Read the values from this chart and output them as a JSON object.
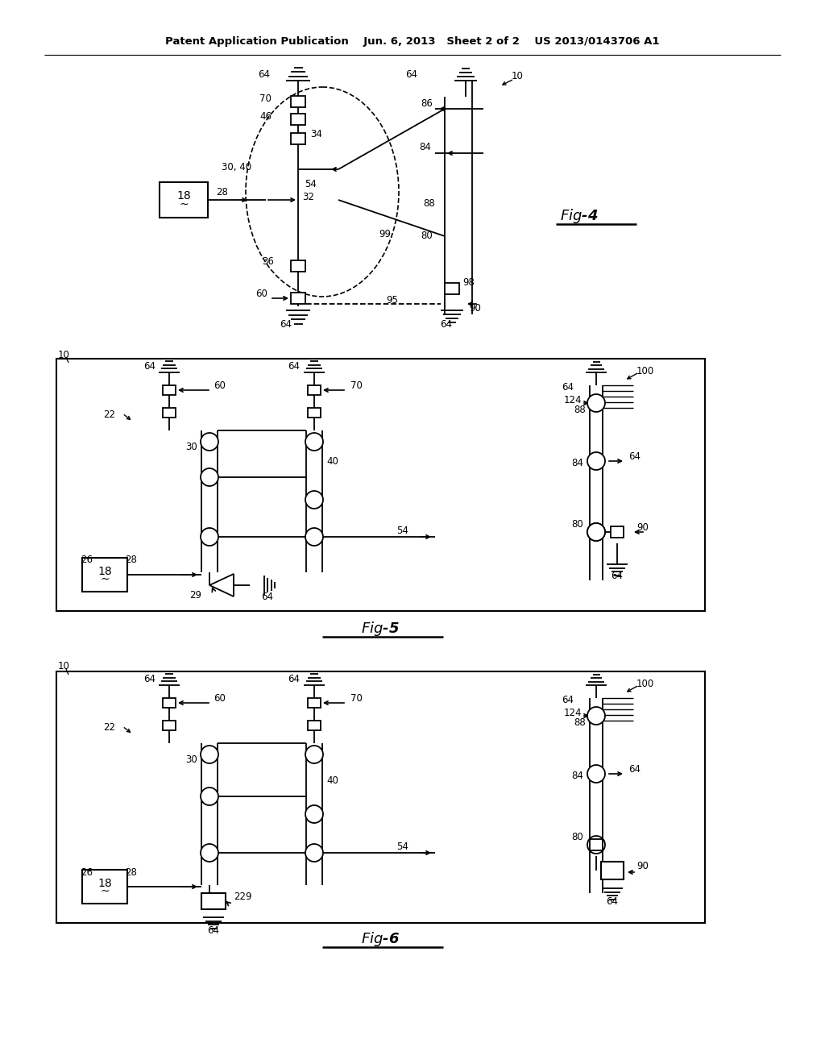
{
  "background": "#ffffff",
  "fig_width": 10.24,
  "fig_height": 13.2,
  "header": "Patent Application Publication    Jun. 6, 2013   Sheet 2 of 2    US 2013/0143706 A1"
}
